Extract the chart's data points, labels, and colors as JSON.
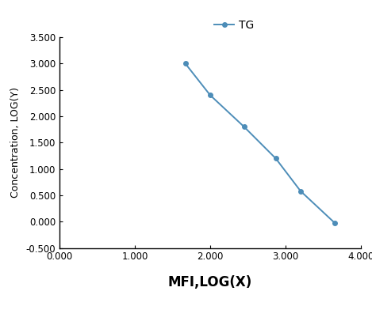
{
  "x_data": [
    1.67,
    2.0,
    2.45,
    2.87,
    3.2,
    3.65
  ],
  "y_data": [
    3.0,
    2.4,
    1.8,
    1.2,
    0.58,
    -0.02
  ],
  "line_color": "#4d8db8",
  "marker": "o",
  "marker_size": 4,
  "line_width": 1.4,
  "legend_label": "TG",
  "xlabel": "MFI,LOG(X)",
  "ylabel": "Concentration, LOG(Y)",
  "xlim": [
    0.0,
    4.0
  ],
  "ylim": [
    -0.5,
    3.5
  ],
  "xticks": [
    0.0,
    1.0,
    2.0,
    3.0,
    4.0
  ],
  "yticks": [
    -0.5,
    0.0,
    0.5,
    1.0,
    1.5,
    2.0,
    2.5,
    3.0,
    3.5
  ],
  "xlabel_fontsize": 12,
  "ylabel_fontsize": 9,
  "tick_fontsize": 8.5,
  "legend_fontsize": 10,
  "background_color": "#ffffff"
}
